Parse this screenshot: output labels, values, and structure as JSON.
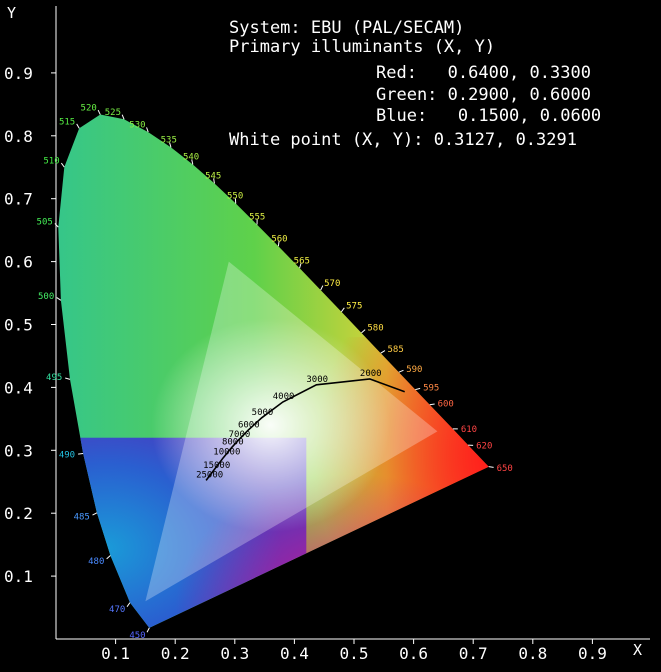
{
  "chart_data": {
    "type": "scatter",
    "xlabel": "X",
    "ylabel": "Y",
    "xlim": [
      0.0,
      0.8
    ],
    "ylim": [
      0.0,
      0.9
    ],
    "x_ticks": [
      "0.1",
      "0.2",
      "0.3",
      "0.4",
      "0.5",
      "0.6",
      "0.7",
      "0.8",
      "0.9"
    ],
    "y_ticks": [
      "0.1",
      "0.2",
      "0.3",
      "0.4",
      "0.5",
      "0.6",
      "0.7",
      "0.8",
      "0.9"
    ],
    "info": {
      "system": "System: EBU (PAL/SECAM)",
      "primaries_title": "Primary illuminants (X, Y)",
      "red": "Red:   0.6400, 0.3300",
      "green": "Green: 0.2900, 0.6000",
      "blue": "Blue:   0.1500, 0.0600",
      "white_point": "White point (X, Y): 0.3127, 0.3291"
    },
    "primaries": [
      {
        "name": "Red",
        "x": 0.64,
        "y": 0.33
      },
      {
        "name": "Green",
        "x": 0.29,
        "y": 0.6
      },
      {
        "name": "Blue",
        "x": 0.15,
        "y": 0.06
      }
    ],
    "white_point": {
      "x": 0.3127,
      "y": 0.3291
    },
    "spectral_locus": [
      {
        "label": "450",
        "x": 0.1566,
        "y": 0.0177,
        "color": "#5566ff"
      },
      {
        "label": "470",
        "x": 0.1241,
        "y": 0.0578,
        "color": "#5577ff"
      },
      {
        "label": "480",
        "x": 0.0913,
        "y": 0.1327,
        "color": "#4a8aff"
      },
      {
        "label": "485",
        "x": 0.0687,
        "y": 0.2007,
        "color": "#4a99ff"
      },
      {
        "label": "490",
        "x": 0.0454,
        "y": 0.295,
        "color": "#22c0e0"
      },
      {
        "label": "495",
        "x": 0.0235,
        "y": 0.4127,
        "color": "#33e0a0"
      },
      {
        "label": "500",
        "x": 0.0082,
        "y": 0.5384,
        "color": "#44ee66"
      },
      {
        "label": "505",
        "x": 0.0039,
        "y": 0.6548,
        "color": "#44ee55"
      },
      {
        "label": "510",
        "x": 0.0139,
        "y": 0.7502,
        "color": "#44ee44"
      },
      {
        "label": "515",
        "x": 0.0389,
        "y": 0.812,
        "color": "#55ee44"
      },
      {
        "label": "520",
        "x": 0.0743,
        "y": 0.8338,
        "color": "#66ee44"
      },
      {
        "label": "525",
        "x": 0.1142,
        "y": 0.8262,
        "color": "#77ee44"
      },
      {
        "label": "530",
        "x": 0.1547,
        "y": 0.8059,
        "color": "#88ee44"
      },
      {
        "label": "535",
        "x": 0.1929,
        "y": 0.7816,
        "color": "#99ee44"
      },
      {
        "label": "540",
        "x": 0.2296,
        "y": 0.7543,
        "color": "#aaee44"
      },
      {
        "label": "545",
        "x": 0.2658,
        "y": 0.7243,
        "color": "#bbee44"
      },
      {
        "label": "550",
        "x": 0.3016,
        "y": 0.6923,
        "color": "#ccee44"
      },
      {
        "label": "555",
        "x": 0.3373,
        "y": 0.6589,
        "color": "#ddee44"
      },
      {
        "label": "560",
        "x": 0.3731,
        "y": 0.6245,
        "color": "#eeee44"
      },
      {
        "label": "565",
        "x": 0.4087,
        "y": 0.5896,
        "color": "#eeee44"
      },
      {
        "label": "570",
        "x": 0.4441,
        "y": 0.5547,
        "color": "#ffee44"
      },
      {
        "label": "575",
        "x": 0.4788,
        "y": 0.5202,
        "color": "#ffee44"
      },
      {
        "label": "580",
        "x": 0.5125,
        "y": 0.4866,
        "color": "#ffdd44"
      },
      {
        "label": "585",
        "x": 0.5448,
        "y": 0.4544,
        "color": "#ffcc44"
      },
      {
        "label": "590",
        "x": 0.5752,
        "y": 0.4242,
        "color": "#ffaa44"
      },
      {
        "label": "595",
        "x": 0.6029,
        "y": 0.3965,
        "color": "#ff8844"
      },
      {
        "label": "600",
        "x": 0.627,
        "y": 0.3725,
        "color": "#ff6644"
      },
      {
        "label": "610",
        "x": 0.6658,
        "y": 0.334,
        "color": "#ff4444"
      },
      {
        "label": "620",
        "x": 0.6915,
        "y": 0.3083,
        "color": "#ff4444"
      },
      {
        "label": "650",
        "x": 0.726,
        "y": 0.274,
        "color": "#ff4444"
      }
    ],
    "planckian_locus": [
      {
        "label": "25000",
        "x": 0.2518,
        "y": 0.2522
      },
      {
        "label": "15000",
        "x": 0.2637,
        "y": 0.2671
      },
      {
        "label": "10000",
        "x": 0.2807,
        "y": 0.2883
      },
      {
        "label": "8000",
        "x": 0.2952,
        "y": 0.3048
      },
      {
        "label": "7000",
        "x": 0.3064,
        "y": 0.3166
      },
      {
        "label": "6000",
        "x": 0.3221,
        "y": 0.3318
      },
      {
        "label": "5000",
        "x": 0.3451,
        "y": 0.3516
      },
      {
        "label": "4000",
        "x": 0.3805,
        "y": 0.3768
      },
      {
        "label": "3000",
        "x": 0.4369,
        "y": 0.4041
      },
      {
        "label": "2000",
        "x": 0.5267,
        "y": 0.4133
      }
    ]
  }
}
